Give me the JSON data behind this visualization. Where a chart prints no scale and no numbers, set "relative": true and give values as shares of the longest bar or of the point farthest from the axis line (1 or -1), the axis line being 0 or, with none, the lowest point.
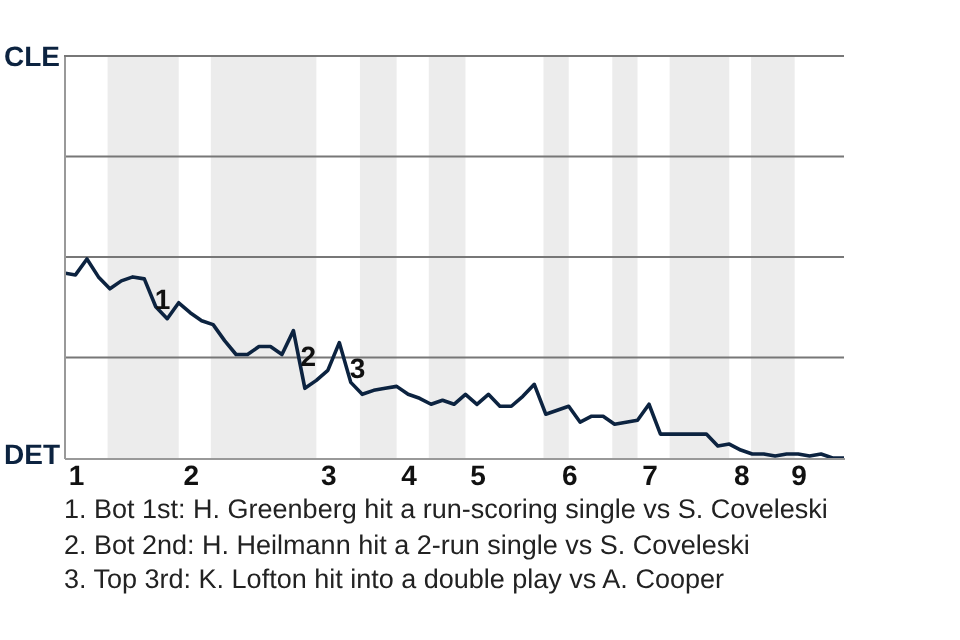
{
  "chart_data": {
    "type": "line",
    "relative": true,
    "categories": [
      null,
      "1",
      null,
      null,
      null,
      null,
      null,
      null,
      null,
      null,
      null,
      "2",
      null,
      null,
      null,
      null,
      null,
      null,
      null,
      null,
      null,
      null,
      null,
      "3",
      null,
      null,
      null,
      null,
      null,
      null,
      "4",
      null,
      null,
      null,
      null,
      null,
      "5",
      null,
      null,
      null,
      null,
      null,
      null,
      null,
      "6",
      null,
      null,
      null,
      null,
      null,
      null,
      "7",
      null,
      null,
      null,
      null,
      null,
      null,
      null,
      "8",
      null,
      null,
      null,
      null,
      "9",
      null,
      null,
      null,
      null
    ],
    "series": [
      {
        "color": "#0c2340",
        "values": [
          0.93,
          0.92,
          1,
          0.91,
          0.85,
          0.89,
          0.91,
          0.9,
          0.76,
          0.7,
          0.78,
          0.73,
          0.69,
          0.67,
          0.59,
          0.52,
          0.52,
          0.56,
          0.56,
          0.52,
          0.64,
          0.35,
          0.39,
          0.44,
          0.58,
          0.38,
          0.32,
          0.34,
          0.35,
          0.36,
          0.32,
          0.3,
          0.27,
          0.29,
          0.27,
          0.32,
          0.27,
          0.32,
          0.26,
          0.26,
          0.31,
          0.37,
          0.22,
          0.24,
          0.26,
          0.18,
          0.21,
          0.21,
          0.17,
          0.18,
          0.19,
          0.27,
          0.12,
          0.12,
          0.12,
          0.12,
          0.12,
          0.06,
          0.07,
          0.04,
          0.02,
          0.02,
          0.01,
          0.02,
          0.02,
          0.01,
          0.02,
          0,
          0
        ]
      }
    ],
    "ref_lines": [
      {
        "axis": "y",
        "value": 0.505,
        "color": "#777777"
      },
      {
        "axis": "y",
        "value": 1.01,
        "color": "#777777"
      },
      {
        "axis": "y",
        "value": 1.515,
        "color": "#777777"
      },
      {
        "axis": "y",
        "value": 2.02,
        "color": "#777777"
      }
    ],
    "annotations": [
      {
        "text": "1",
        "y": 0.77
      },
      {
        "text": "2",
        "y": 0.48
      },
      {
        "text": "3",
        "y": 0.42
      },
      "CLE",
      "DET",
      "1. Bot 1st: H. Greenberg hit a run-scoring single vs S. Coveleski",
      "2. Bot 2nd: H. Heilmann hit a 2-run single vs S. Coveleski",
      "3. Top 3rd: K. Lofton hit into a double play vs A. Cooper"
    ]
  }
}
